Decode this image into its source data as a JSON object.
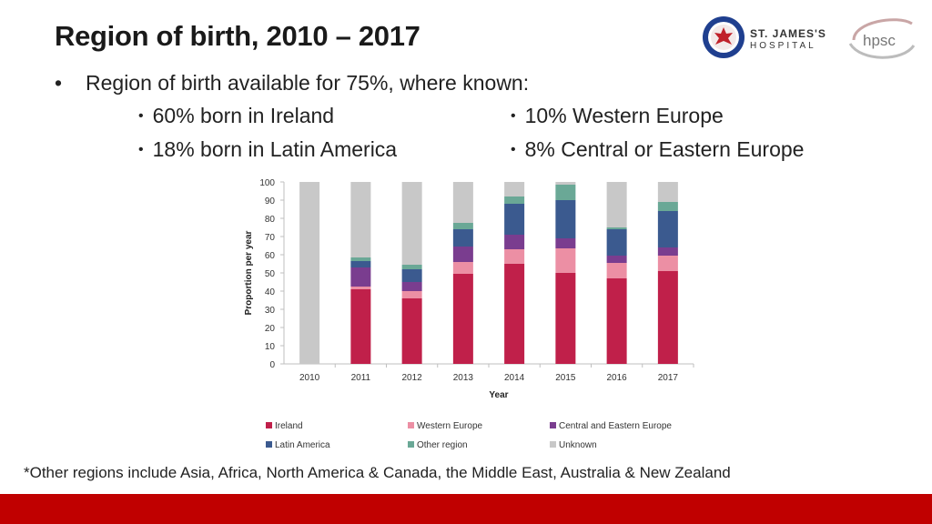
{
  "slide": {
    "title": "Region of birth, 2010 – 2017",
    "bullet": "Region of birth available for 75%, where known:",
    "sub_bullets_left": [
      "60% born in Ireland",
      "18% born in Latin America"
    ],
    "sub_bullets_right": [
      "10% Western Europe",
      "8% Central or Eastern Europe"
    ],
    "footnote": "*Other regions include Asia, Africa, North America & Canada, the Middle East, Australia & New Zealand",
    "logos": {
      "sj_line1": "ST. JAMES'S",
      "sj_line2": "HOSPITAL",
      "hpsc": "hpsc"
    },
    "colors": {
      "accent_bar": "#c00000"
    }
  },
  "chart_data": {
    "type": "bar",
    "stacked": true,
    "categories": [
      "2010",
      "2011",
      "2012",
      "2013",
      "2014",
      "2015",
      "2016",
      "2017"
    ],
    "xlabel": "Year",
    "ylabel": "Proportion per year",
    "ylim": [
      0,
      100
    ],
    "yticks": [
      0,
      10,
      20,
      30,
      40,
      50,
      60,
      70,
      80,
      90,
      100
    ],
    "grid": false,
    "legend_position": "bottom",
    "series": [
      {
        "name": "Ireland",
        "color": "#c0204a",
        "values": [
          0,
          41,
          36,
          49.5,
          55,
          50,
          47,
          51
        ]
      },
      {
        "name": "Western Europe",
        "color": "#ec8fa4",
        "values": [
          0,
          1.5,
          4,
          6.5,
          8,
          13.5,
          8.5,
          8.5
        ]
      },
      {
        "name": "Central and Eastern Europe",
        "color": "#7a3d8f",
        "values": [
          0,
          10.5,
          5,
          8.5,
          8,
          5.5,
          4,
          4.5
        ]
      },
      {
        "name": "Latin America",
        "color": "#3b5a8f",
        "values": [
          0,
          3.5,
          7,
          9.5,
          17,
          21,
          14.5,
          20
        ]
      },
      {
        "name": "Other region",
        "color": "#6aa896",
        "values": [
          0,
          2,
          2.5,
          3.5,
          4,
          8.5,
          1,
          5
        ]
      },
      {
        "name": "Unknown",
        "color": "#c8c8c8",
        "values": [
          100,
          41.5,
          45.5,
          22.5,
          8,
          1.5,
          25,
          11
        ]
      }
    ]
  }
}
